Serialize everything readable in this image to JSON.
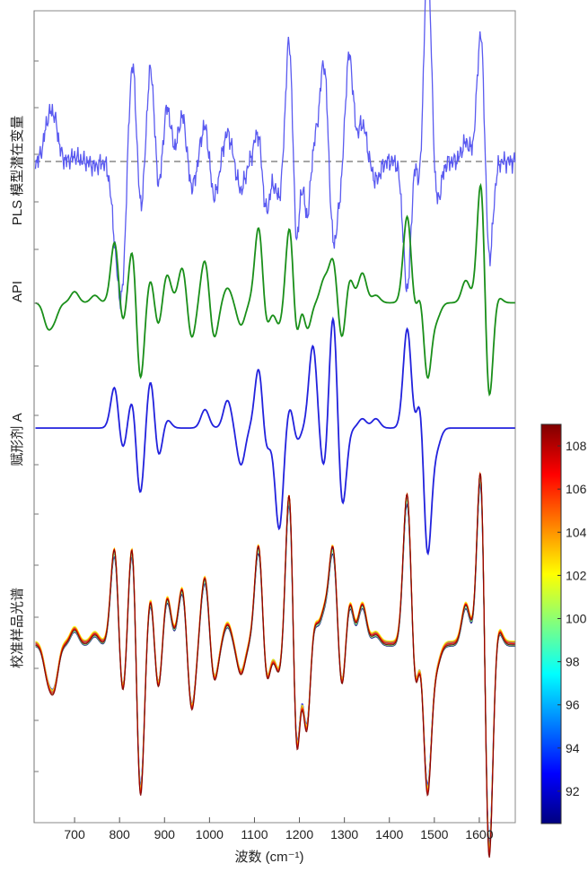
{
  "chart_data": {
    "type": "line",
    "xlabel": "波数 (cm⁻¹)",
    "xlim": [
      610,
      1680
    ],
    "xticks": [
      700,
      800,
      900,
      1000,
      1100,
      1200,
      1300,
      1400,
      1500,
      1600
    ],
    "panels": [
      {
        "label": "PLS 模型潜在变量",
        "color": "#5a5af0",
        "baseline": "dashed",
        "ylim": [
          -1.0,
          1.6
        ]
      },
      {
        "label": "API",
        "color": "#1a8f1a",
        "ylim": [
          -1.0,
          1.0
        ]
      },
      {
        "label": "赋形剂 A",
        "color": "#2222dd",
        "ylim": [
          -1.1,
          0.8
        ]
      },
      {
        "label": "校准样品光谱",
        "colormap": "jet",
        "ylim": [
          -1.7,
          1.6
        ]
      }
    ],
    "peaks": [
      {
        "x": 640,
        "a": [
          0.35,
          -0.3,
          0.0,
          -0.3
        ]
      },
      {
        "x": 655,
        "a": [
          0.4,
          -0.2,
          0.0,
          -0.4
        ]
      },
      {
        "x": 700,
        "a": [
          0.05,
          0.15,
          0.0,
          0.15
        ]
      },
      {
        "x": 745,
        "a": [
          -0.05,
          0.1,
          0.0,
          0.1
        ]
      },
      {
        "x": 790,
        "a": [
          -0.6,
          0.9,
          0.5,
          1.1
        ]
      },
      {
        "x": 805,
        "a": [
          -1.3,
          -0.4,
          -0.3,
          -0.7
        ]
      },
      {
        "x": 830,
        "a": [
          1.2,
          0.9,
          0.4,
          1.3
        ]
      },
      {
        "x": 845,
        "a": [
          -0.7,
          -1.2,
          -0.8,
          -1.8
        ]
      },
      {
        "x": 870,
        "a": [
          1.1,
          0.4,
          0.6,
          0.6
        ]
      },
      {
        "x": 885,
        "a": [
          -0.5,
          -0.4,
          -0.4,
          -0.6
        ]
      },
      {
        "x": 905,
        "a": [
          0.6,
          0.4,
          0.1,
          0.5
        ]
      },
      {
        "x": 940,
        "a": [
          0.5,
          0.5,
          0.0,
          0.6
        ]
      },
      {
        "x": 960,
        "a": [
          -0.3,
          -0.5,
          0.0,
          -0.7
        ]
      },
      {
        "x": 990,
        "a": [
          0.4,
          0.6,
          0.2,
          0.7
        ]
      },
      {
        "x": 1010,
        "a": [
          -0.4,
          -0.5,
          0.0,
          -0.4
        ]
      },
      {
        "x": 1040,
        "a": [
          0.3,
          0.2,
          0.3,
          0.2
        ]
      },
      {
        "x": 1070,
        "a": [
          -0.3,
          -0.3,
          -0.4,
          -0.3
        ]
      },
      {
        "x": 1110,
        "a": [
          0.4,
          1.1,
          0.7,
          1.1
        ]
      },
      {
        "x": 1125,
        "a": [
          -0.6,
          -0.4,
          -0.3,
          -0.5
        ]
      },
      {
        "x": 1155,
        "a": [
          -0.4,
          -0.3,
          -1.1,
          -0.3
        ]
      },
      {
        "x": 1180,
        "a": [
          1.8,
          1.3,
          0.3,
          2.1
        ]
      },
      {
        "x": 1192,
        "a": [
          -1.7,
          -0.9,
          -0.2,
          -1.9
        ]
      },
      {
        "x": 1205,
        "a": [
          0.8,
          0.4,
          0.0,
          0.6
        ]
      },
      {
        "x": 1215,
        "a": [
          -1.0,
          -0.5,
          0.0,
          -1.2
        ]
      },
      {
        "x": 1230,
        "a": [
          0.3,
          0.0,
          0.9,
          0.3
        ]
      },
      {
        "x": 1255,
        "a": [
          1.1,
          0.3,
          -0.5,
          0.3
        ]
      },
      {
        "x": 1275,
        "a": [
          -0.9,
          0.6,
          1.3,
          1.0
        ]
      },
      {
        "x": 1295,
        "a": [
          -0.3,
          -0.6,
          -0.9,
          -0.6
        ]
      },
      {
        "x": 1310,
        "a": [
          1.2,
          0.4,
          0.0,
          0.5
        ]
      },
      {
        "x": 1340,
        "a": [
          0.4,
          0.4,
          0.1,
          0.4
        ]
      },
      {
        "x": 1370,
        "a": [
          -0.2,
          0.1,
          0.1,
          0.1
        ]
      },
      {
        "x": 1440,
        "a": [
          -1.4,
          1.2,
          1.1,
          1.6
        ]
      },
      {
        "x": 1458,
        "a": [
          0.4,
          -0.3,
          -0.2,
          -0.7
        ]
      },
      {
        "x": 1470,
        "a": [
          -0.8,
          0.4,
          0.6,
          0.4
        ]
      },
      {
        "x": 1484,
        "a": [
          2.4,
          -1.1,
          -1.5,
          -1.6
        ]
      },
      {
        "x": 1505,
        "a": [
          -0.5,
          -0.2,
          -0.2,
          -0.2
        ]
      },
      {
        "x": 1570,
        "a": [
          0.2,
          0.3,
          0.0,
          0.4
        ]
      },
      {
        "x": 1605,
        "a": [
          1.6,
          1.9,
          0.0,
          2.2
        ]
      },
      {
        "x": 1620,
        "a": [
          -1.3,
          -1.6,
          0.0,
          -2.6
        ]
      },
      {
        "x": 1640,
        "a": [
          0.0,
          0.1,
          0.0,
          0.2
        ]
      }
    ],
    "colorbar": {
      "min": 90.5,
      "max": 109,
      "ticks": [
        92,
        94,
        96,
        98,
        100,
        102,
        104,
        106,
        108
      ]
    }
  }
}
